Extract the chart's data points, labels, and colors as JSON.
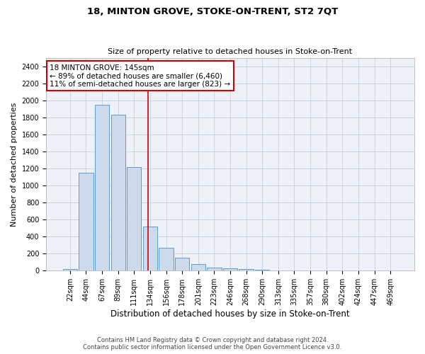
{
  "title": "18, MINTON GROVE, STOKE-ON-TRENT, ST2 7QT",
  "subtitle": "Size of property relative to detached houses in Stoke-on-Trent",
  "xlabel": "Distribution of detached houses by size in Stoke-on-Trent",
  "ylabel": "Number of detached properties",
  "categories": [
    "22sqm",
    "44sqm",
    "67sqm",
    "89sqm",
    "111sqm",
    "134sqm",
    "156sqm",
    "178sqm",
    "201sqm",
    "223sqm",
    "246sqm",
    "268sqm",
    "290sqm",
    "313sqm",
    "335sqm",
    "357sqm",
    "380sqm",
    "402sqm",
    "424sqm",
    "447sqm",
    "469sqm"
  ],
  "values": [
    20,
    1150,
    1950,
    1830,
    1220,
    520,
    265,
    150,
    75,
    40,
    30,
    20,
    15,
    5,
    5,
    5,
    2,
    2,
    2,
    2,
    2
  ],
  "bar_color": "#cddaeb",
  "bar_edge_color": "#5b9bd5",
  "grid_color": "#c8d4e4",
  "bg_color": "#eef2f8",
  "marker_color": "#cc0000",
  "annotation_line1": "18 MINTON GROVE: 145sqm",
  "annotation_line2": "← 89% of detached houses are smaller (6,460)",
  "annotation_line3": "11% of semi-detached houses are larger (823) →",
  "annotation_box_color": "#ffffff",
  "annotation_box_edge_color": "#cc0000",
  "footer_line1": "Contains HM Land Registry data © Crown copyright and database right 2024.",
  "footer_line2": "Contains public sector information licensed under the Open Government Licence v3.0.",
  "ylim": [
    0,
    2500
  ],
  "yticks": [
    0,
    200,
    400,
    600,
    800,
    1000,
    1200,
    1400,
    1600,
    1800,
    2000,
    2200,
    2400
  ],
  "marker_bin_index": 5,
  "title_fontsize": 9.5,
  "subtitle_fontsize": 8,
  "tick_fontsize": 7,
  "ylabel_fontsize": 8,
  "xlabel_fontsize": 8.5
}
